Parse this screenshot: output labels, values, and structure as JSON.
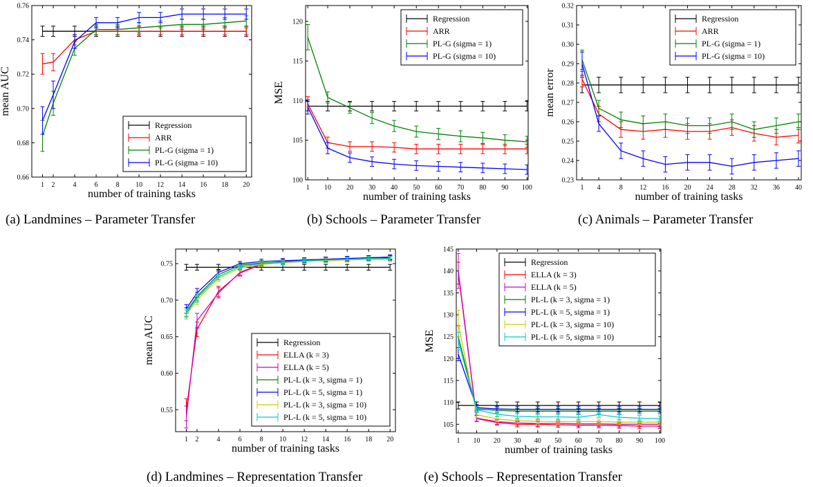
{
  "chart_data": [
    {
      "type": "line",
      "caption": "(a) Landmines – Parameter Transfer",
      "xlabel": "number of training tasks",
      "ylabel": "mean AUC",
      "x": [
        1,
        2,
        4,
        6,
        8,
        10,
        12,
        14,
        16,
        18,
        20
      ],
      "xticks": [
        "1",
        "2",
        "4",
        "6",
        "8",
        "10",
        "12",
        "14",
        "16",
        "18",
        "20"
      ],
      "xlim": [
        0,
        20.5
      ],
      "ylim": [
        0.66,
        0.76
      ],
      "yticks": [
        "0.66",
        "0.68",
        "0.70",
        "0.72",
        "0.74",
        "0.76"
      ],
      "legend_position": "lower-right",
      "series": [
        {
          "name": "Regression",
          "color": "#000000",
          "values": [
            0.745,
            0.745,
            0.745,
            0.745,
            0.745,
            0.745,
            0.745,
            0.745,
            0.745,
            0.745,
            0.745
          ],
          "err": [
            0.003,
            0.003,
            0.003,
            0.003,
            0.003,
            0.003,
            0.003,
            0.003,
            0.003,
            0.003,
            0.003
          ]
        },
        {
          "name": "ARR",
          "color": "#ff0000",
          "values": [
            0.726,
            0.727,
            0.74,
            0.745,
            0.745,
            0.745,
            0.745,
            0.745,
            0.745,
            0.745,
            0.745
          ],
          "err": [
            0.006,
            0.005,
            0.003,
            0.002,
            0.002,
            0.002,
            0.002,
            0.002,
            0.002,
            0.002,
            0.002
          ]
        },
        {
          "name": "PL-G (sigma = 1)",
          "color": "#008000",
          "values": [
            0.684,
            0.703,
            0.735,
            0.746,
            0.746,
            0.747,
            0.748,
            0.749,
            0.749,
            0.75,
            0.751
          ],
          "err": [
            0.009,
            0.007,
            0.004,
            0.003,
            0.003,
            0.003,
            0.003,
            0.003,
            0.003,
            0.003,
            0.003
          ]
        },
        {
          "name": "PL-G (sigma = 10)",
          "color": "#0000ff",
          "values": [
            0.693,
            0.708,
            0.739,
            0.75,
            0.75,
            0.753,
            0.753,
            0.755,
            0.755,
            0.755,
            0.755
          ],
          "err": [
            0.008,
            0.008,
            0.004,
            0.003,
            0.003,
            0.003,
            0.003,
            0.003,
            0.003,
            0.003,
            0.003
          ]
        }
      ]
    },
    {
      "type": "line",
      "caption": "(b) Schools – Parameter Transfer",
      "xlabel": "number of training tasks",
      "ylabel": "MSE",
      "x": [
        1,
        10,
        20,
        30,
        40,
        50,
        60,
        70,
        80,
        90,
        100
      ],
      "xticks": [
        "1",
        "10",
        "20",
        "30",
        "40",
        "50",
        "60",
        "70",
        "80",
        "90",
        "100"
      ],
      "xlim": [
        0,
        100.5
      ],
      "ylim": [
        100,
        122
      ],
      "yticks": [
        "100",
        "105",
        "110",
        "115",
        "120"
      ],
      "legend_position": "top-right",
      "series": [
        {
          "name": "Regression",
          "color": "#000000",
          "values": [
            109.3,
            109.3,
            109.3,
            109.3,
            109.3,
            109.3,
            109.3,
            109.3,
            109.3,
            109.3,
            109.3
          ],
          "err": [
            0.6,
            0.6,
            0.6,
            0.6,
            0.6,
            0.6,
            0.6,
            0.6,
            0.6,
            0.6,
            0.6
          ]
        },
        {
          "name": "ARR",
          "color": "#ff0000",
          "values": [
            109.6,
            104.7,
            104.2,
            104.2,
            104.1,
            103.9,
            103.9,
            103.9,
            103.9,
            103.9,
            103.9
          ],
          "err": [
            0.9,
            0.7,
            0.6,
            0.6,
            0.6,
            0.6,
            0.6,
            0.6,
            0.6,
            0.6,
            0.6
          ]
        },
        {
          "name": "PL-G (sigma = 1)",
          "color": "#008000",
          "values": [
            118.0,
            110.4,
            109.1,
            107.8,
            106.8,
            106.1,
            105.8,
            105.5,
            105.3,
            105.0,
            104.8
          ],
          "err": [
            1.6,
            0.7,
            0.7,
            0.7,
            0.7,
            0.7,
            0.7,
            0.7,
            0.7,
            0.7,
            0.7
          ]
        },
        {
          "name": "PL-G (sigma = 10)",
          "color": "#0000ff",
          "values": [
            109.2,
            104.0,
            102.8,
            102.3,
            102.0,
            101.8,
            101.7,
            101.6,
            101.5,
            101.4,
            101.3
          ],
          "err": [
            0.9,
            0.7,
            0.6,
            0.6,
            0.6,
            0.6,
            0.6,
            0.6,
            0.6,
            0.6,
            0.6
          ]
        }
      ]
    },
    {
      "type": "line",
      "caption": "(c) Animals – Parameter Transfer",
      "xlabel": "number of training tasks",
      "ylabel": "mean error",
      "x": [
        1,
        4,
        8,
        12,
        16,
        20,
        24,
        28,
        32,
        36,
        40
      ],
      "xticks": [
        "1",
        "4",
        "8",
        "12",
        "16",
        "20",
        "24",
        "28",
        "32",
        "36",
        "40"
      ],
      "xlim": [
        0,
        40.5
      ],
      "ylim": [
        0.23,
        0.32
      ],
      "yticks": [
        "0.23",
        "0.24",
        "0.25",
        "0.26",
        "0.27",
        "0.28",
        "0.29",
        "0.30",
        "0.31",
        "0.32"
      ],
      "legend_position": "top-right",
      "series": [
        {
          "name": "Regression",
          "color": "#000000",
          "values": [
            0.279,
            0.279,
            0.279,
            0.279,
            0.279,
            0.279,
            0.279,
            0.279,
            0.279,
            0.279,
            0.279
          ],
          "err": [
            0.004,
            0.004,
            0.004,
            0.004,
            0.004,
            0.004,
            0.004,
            0.004,
            0.004,
            0.004,
            0.004
          ]
        },
        {
          "name": "ARR",
          "color": "#ff0000",
          "values": [
            0.282,
            0.264,
            0.256,
            0.255,
            0.256,
            0.255,
            0.255,
            0.257,
            0.254,
            0.252,
            0.253
          ],
          "err": [
            0.004,
            0.004,
            0.004,
            0.004,
            0.004,
            0.004,
            0.004,
            0.004,
            0.004,
            0.004,
            0.004
          ]
        },
        {
          "name": "PL-G (sigma = 1)",
          "color": "#008000",
          "values": [
            0.292,
            0.267,
            0.261,
            0.259,
            0.26,
            0.258,
            0.258,
            0.26,
            0.256,
            0.258,
            0.26
          ],
          "err": [
            0.005,
            0.004,
            0.004,
            0.004,
            0.004,
            0.004,
            0.004,
            0.004,
            0.004,
            0.004,
            0.004
          ]
        },
        {
          "name": "PL-G (sigma = 10)",
          "color": "#0000ff",
          "values": [
            0.29,
            0.259,
            0.245,
            0.241,
            0.238,
            0.239,
            0.239,
            0.237,
            0.239,
            0.24,
            0.241
          ],
          "err": [
            0.006,
            0.004,
            0.004,
            0.004,
            0.004,
            0.004,
            0.004,
            0.004,
            0.004,
            0.004,
            0.004
          ]
        }
      ]
    },
    {
      "type": "line",
      "caption": "(d) Landmines – Representation Transfer",
      "xlabel": "number of training tasks",
      "ylabel": "mean AUC",
      "x": [
        1,
        2,
        4,
        6,
        8,
        10,
        12,
        14,
        16,
        18,
        20
      ],
      "xticks": [
        "1",
        "2",
        "4",
        "6",
        "8",
        "10",
        "12",
        "14",
        "16",
        "18",
        "20"
      ],
      "xlim": [
        0,
        20.5
      ],
      "ylim": [
        0.52,
        0.77
      ],
      "yticks": [
        "0.55",
        "0.60",
        "0.65",
        "0.70",
        "0.75"
      ],
      "legend_position": "lower-right",
      "series": [
        {
          "name": "Regression",
          "color": "#000000",
          "values": [
            0.745,
            0.745,
            0.745,
            0.745,
            0.745,
            0.745,
            0.745,
            0.745,
            0.745,
            0.745,
            0.745
          ],
          "err": [
            0.004,
            0.004,
            0.004,
            0.004,
            0.004,
            0.004,
            0.004,
            0.004,
            0.004,
            0.004,
            0.004
          ]
        },
        {
          "name": "ELLA (k = 3)",
          "color": "#ff0000",
          "values": [
            0.55,
            0.66,
            0.712,
            0.737,
            0.749,
            0.752,
            0.754,
            0.755,
            0.756,
            0.757,
            0.758
          ],
          "err": [
            0.015,
            0.01,
            0.007,
            0.004,
            0.003,
            0.003,
            0.003,
            0.003,
            0.003,
            0.003,
            0.003
          ]
        },
        {
          "name": "ELLA (k = 5)",
          "color": "#cc00cc",
          "values": [
            0.54,
            0.672,
            0.71,
            0.738,
            0.75,
            0.753,
            0.755,
            0.756,
            0.757,
            0.758,
            0.759
          ],
          "err": [
            0.015,
            0.01,
            0.007,
            0.004,
            0.003,
            0.003,
            0.003,
            0.003,
            0.003,
            0.003,
            0.003
          ]
        },
        {
          "name": "PL-L (k = 3, sigma = 1)",
          "color": "#008000",
          "values": [
            0.684,
            0.705,
            0.735,
            0.748,
            0.751,
            0.752,
            0.754,
            0.755,
            0.756,
            0.757,
            0.757
          ],
          "err": [
            0.006,
            0.006,
            0.004,
            0.003,
            0.003,
            0.003,
            0.003,
            0.003,
            0.003,
            0.003,
            0.003
          ]
        },
        {
          "name": "PL-L (k = 5, sigma = 1)",
          "color": "#0000ff",
          "values": [
            0.688,
            0.71,
            0.738,
            0.75,
            0.753,
            0.754,
            0.755,
            0.756,
            0.757,
            0.758,
            0.759
          ],
          "err": [
            0.006,
            0.006,
            0.004,
            0.003,
            0.003,
            0.003,
            0.003,
            0.003,
            0.003,
            0.003,
            0.003
          ]
        },
        {
          "name": "PL-L (k = 3, sigma = 10)",
          "color": "#cccc00",
          "values": [
            0.68,
            0.7,
            0.73,
            0.744,
            0.749,
            0.751,
            0.753,
            0.754,
            0.755,
            0.756,
            0.756
          ],
          "err": [
            0.006,
            0.006,
            0.004,
            0.003,
            0.003,
            0.003,
            0.003,
            0.003,
            0.003,
            0.003,
            0.003
          ]
        },
        {
          "name": "PL-L (k = 5, sigma = 10)",
          "color": "#00cccc",
          "values": [
            0.682,
            0.703,
            0.732,
            0.746,
            0.75,
            0.752,
            0.754,
            0.755,
            0.756,
            0.757,
            0.757
          ],
          "err": [
            0.006,
            0.006,
            0.004,
            0.003,
            0.003,
            0.003,
            0.003,
            0.003,
            0.003,
            0.003,
            0.003
          ]
        }
      ]
    },
    {
      "type": "line",
      "caption": "(e) Schools – Representation Transfer",
      "xlabel": "number of training tasks",
      "ylabel": "MSE",
      "x": [
        1,
        10,
        20,
        30,
        40,
        50,
        60,
        70,
        80,
        90,
        100
      ],
      "xticks": [
        "1",
        "10",
        "20",
        "30",
        "40",
        "50",
        "60",
        "70",
        "80",
        "90",
        "100"
      ],
      "xlim": [
        0,
        100.5
      ],
      "ylim": [
        103,
        145
      ],
      "yticks": [
        "105",
        "110",
        "115",
        "120",
        "125",
        "130",
        "135",
        "140",
        "145"
      ],
      "legend_position": "top-right",
      "series": [
        {
          "name": "Regression",
          "color": "#000000",
          "values": [
            109.3,
            109.3,
            109.3,
            109.3,
            109.3,
            109.3,
            109.3,
            109.3,
            109.3,
            109.3,
            109.3
          ],
          "err": [
            0.8,
            0.8,
            0.8,
            0.8,
            0.8,
            0.8,
            0.8,
            0.8,
            0.8,
            0.8,
            0.8
          ]
        },
        {
          "name": "ELLA (k = 3)",
          "color": "#ff0000",
          "values": [
            139.5,
            106.3,
            105.4,
            105.0,
            105.0,
            104.9,
            104.8,
            104.8,
            104.7,
            104.6,
            104.6
          ],
          "err": [
            2.5,
            0.7,
            0.6,
            0.6,
            0.6,
            0.6,
            0.6,
            0.6,
            0.6,
            0.6,
            0.6
          ]
        },
        {
          "name": "ELLA (k = 5)",
          "color": "#cc00cc",
          "values": [
            140.0,
            106.4,
            105.6,
            105.3,
            105.2,
            105.2,
            105.1,
            105.1,
            105.0,
            105.0,
            105.0
          ],
          "err": [
            4.0,
            0.7,
            0.6,
            0.6,
            0.6,
            0.6,
            0.6,
            0.6,
            0.6,
            0.6,
            0.6
          ]
        },
        {
          "name": "PL-L (k = 3, sigma = 1)",
          "color": "#008000",
          "values": [
            125.0,
            108.5,
            108.2,
            108.0,
            108.0,
            108.0,
            108.0,
            108.0,
            108.0,
            108.0,
            108.0
          ],
          "err": [
            2.5,
            0.7,
            0.6,
            0.6,
            0.6,
            0.6,
            0.6,
            0.6,
            0.6,
            0.6,
            0.6
          ]
        },
        {
          "name": "PL-L (k = 5, sigma = 1)",
          "color": "#0000ff",
          "values": [
            121.0,
            108.8,
            108.5,
            108.4,
            108.4,
            108.4,
            108.4,
            108.4,
            108.4,
            108.4,
            108.4
          ],
          "err": [
            1.5,
            0.7,
            0.6,
            0.6,
            0.6,
            0.6,
            0.6,
            0.6,
            0.6,
            0.6,
            0.6
          ]
        },
        {
          "name": "PL-L (k = 3, sigma = 10)",
          "color": "#cccc00",
          "values": [
            128.0,
            107.2,
            106.2,
            105.8,
            105.7,
            105.6,
            105.6,
            105.6,
            105.5,
            105.5,
            105.5
          ],
          "err": [
            3.0,
            0.7,
            0.6,
            0.6,
            0.6,
            0.6,
            0.6,
            0.6,
            0.6,
            0.6,
            0.6
          ]
        },
        {
          "name": "PL-L (k = 5, sigma = 10)",
          "color": "#00cccc",
          "values": [
            124.0,
            108.3,
            107.3,
            106.8,
            106.7,
            106.7,
            106.6,
            107.2,
            106.6,
            106.4,
            106.3
          ],
          "err": [
            2.0,
            0.7,
            0.6,
            0.6,
            0.6,
            0.6,
            0.6,
            0.6,
            0.6,
            0.6,
            0.6
          ]
        }
      ]
    }
  ]
}
